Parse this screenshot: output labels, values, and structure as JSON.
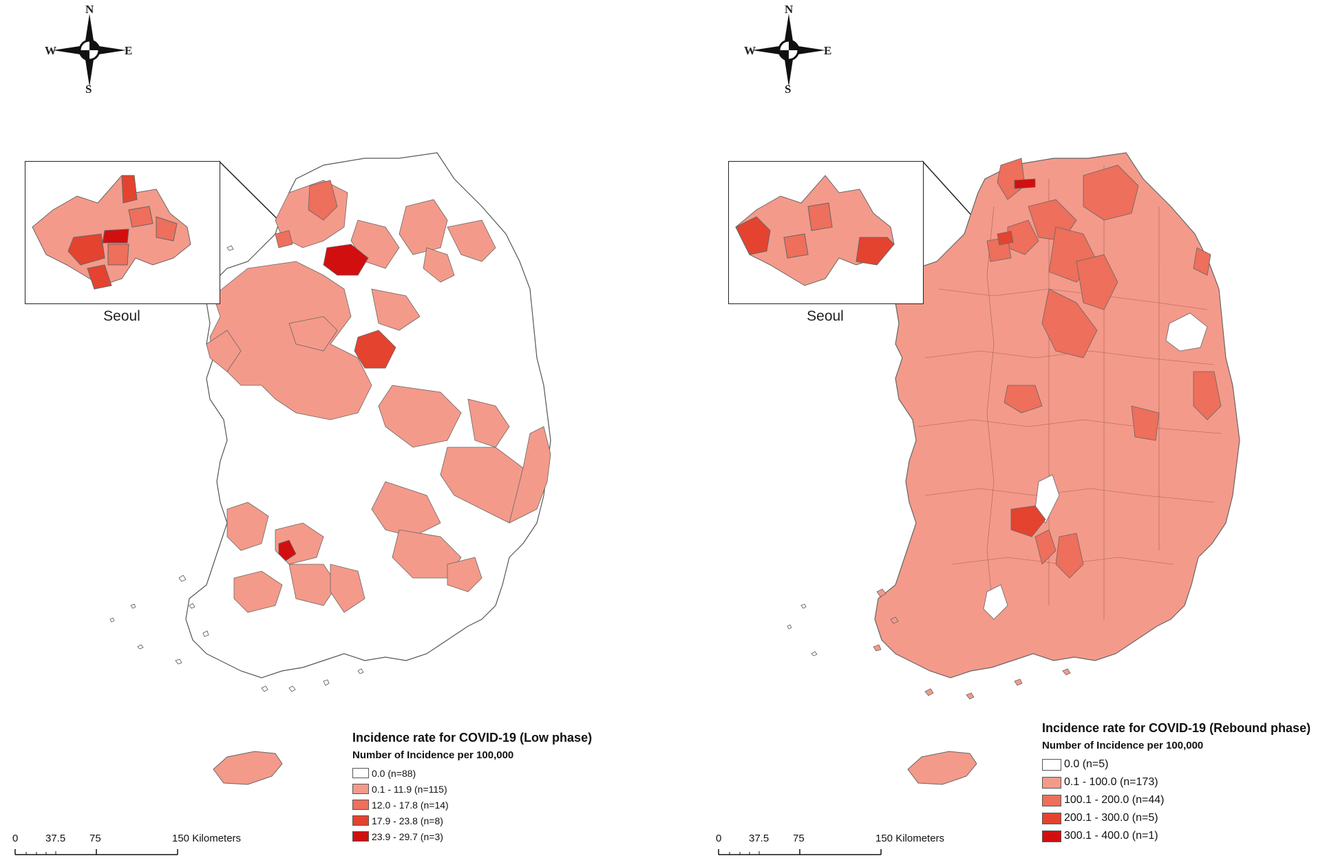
{
  "colors": {
    "class0": "#ffffff",
    "class1": "#f49a8a",
    "class2": "#ed6f5c",
    "class3": "#e4432f",
    "class4": "#d10f0f",
    "boundary": "#555555"
  },
  "left_panel": {
    "compass": {
      "n": "N",
      "s": "S",
      "e": "E",
      "w": "W",
      "icon": "compass-rose-icon"
    },
    "inset_label": "Seoul",
    "legend": {
      "title": "Incidence rate for COVID-19 (Low phase)",
      "subtitle": "Number of Incidence per 100,000",
      "items": [
        {
          "label": "0.0 (n=88)",
          "color": "#ffffff"
        },
        {
          "label": "0.1 - 11.9 (n=115)",
          "color": "#f49a8a"
        },
        {
          "label": "12.0 - 17.8 (n=14)",
          "color": "#ed6f5c"
        },
        {
          "label": "17.9 - 23.8 (n=8)",
          "color": "#e4432f"
        },
        {
          "label": "23.9 - 29.7 (n=3)",
          "color": "#d10f0f"
        }
      ]
    },
    "scale": {
      "t0": "0",
      "t1": "37.5",
      "t2": "75",
      "t3": "150 Kilometers"
    }
  },
  "right_panel": {
    "compass": {
      "n": "N",
      "s": "S",
      "e": "E",
      "w": "W",
      "icon": "compass-rose-icon"
    },
    "inset_label": "Seoul",
    "legend": {
      "title": "Incidence rate for COVID-19 (Rebound phase)",
      "subtitle": "Number of Incidence per 100,000",
      "items": [
        {
          "label": "0.0 (n=5)",
          "color": "#ffffff"
        },
        {
          "label": "0.1 - 100.0 (n=173)",
          "color": "#f49a8a"
        },
        {
          "label": "100.1 - 200.0 (n=44)",
          "color": "#ed6f5c"
        },
        {
          "label": "200.1 - 300.0 (n=5)",
          "color": "#e4432f"
        },
        {
          "label": "300.1 - 400.0 (n=1)",
          "color": "#d10f0f"
        }
      ]
    },
    "scale": {
      "t0": "0",
      "t1": "37.5",
      "t2": "75",
      "t3": "150 Kilometers"
    }
  }
}
